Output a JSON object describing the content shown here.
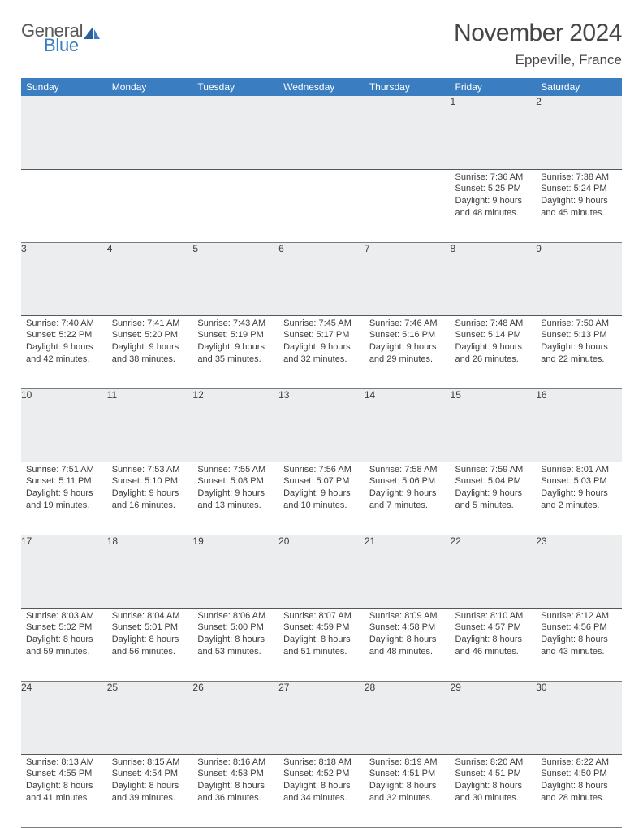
{
  "logo": {
    "general": "General",
    "blue": "Blue"
  },
  "header": {
    "title": "November 2024",
    "location": "Eppeville, France"
  },
  "colors": {
    "header_bg": "#3a7ec1",
    "header_text": "#ffffff",
    "daynum_bg": "#ecedee",
    "text": "#3b3c3e",
    "logo_gray": "#57585a",
    "logo_blue": "#3a7ec1"
  },
  "dayHeaders": [
    "Sunday",
    "Monday",
    "Tuesday",
    "Wednesday",
    "Thursday",
    "Friday",
    "Saturday"
  ],
  "weeks": [
    [
      null,
      null,
      null,
      null,
      null,
      {
        "n": "1",
        "sunrise": "7:36 AM",
        "sunset": "5:25 PM",
        "dh": "9",
        "dm": "48"
      },
      {
        "n": "2",
        "sunrise": "7:38 AM",
        "sunset": "5:24 PM",
        "dh": "9",
        "dm": "45"
      }
    ],
    [
      {
        "n": "3",
        "sunrise": "7:40 AM",
        "sunset": "5:22 PM",
        "dh": "9",
        "dm": "42"
      },
      {
        "n": "4",
        "sunrise": "7:41 AM",
        "sunset": "5:20 PM",
        "dh": "9",
        "dm": "38"
      },
      {
        "n": "5",
        "sunrise": "7:43 AM",
        "sunset": "5:19 PM",
        "dh": "9",
        "dm": "35"
      },
      {
        "n": "6",
        "sunrise": "7:45 AM",
        "sunset": "5:17 PM",
        "dh": "9",
        "dm": "32"
      },
      {
        "n": "7",
        "sunrise": "7:46 AM",
        "sunset": "5:16 PM",
        "dh": "9",
        "dm": "29"
      },
      {
        "n": "8",
        "sunrise": "7:48 AM",
        "sunset": "5:14 PM",
        "dh": "9",
        "dm": "26"
      },
      {
        "n": "9",
        "sunrise": "7:50 AM",
        "sunset": "5:13 PM",
        "dh": "9",
        "dm": "22"
      }
    ],
    [
      {
        "n": "10",
        "sunrise": "7:51 AM",
        "sunset": "5:11 PM",
        "dh": "9",
        "dm": "19"
      },
      {
        "n": "11",
        "sunrise": "7:53 AM",
        "sunset": "5:10 PM",
        "dh": "9",
        "dm": "16"
      },
      {
        "n": "12",
        "sunrise": "7:55 AM",
        "sunset": "5:08 PM",
        "dh": "9",
        "dm": "13"
      },
      {
        "n": "13",
        "sunrise": "7:56 AM",
        "sunset": "5:07 PM",
        "dh": "9",
        "dm": "10"
      },
      {
        "n": "14",
        "sunrise": "7:58 AM",
        "sunset": "5:06 PM",
        "dh": "9",
        "dm": "7"
      },
      {
        "n": "15",
        "sunrise": "7:59 AM",
        "sunset": "5:04 PM",
        "dh": "9",
        "dm": "5"
      },
      {
        "n": "16",
        "sunrise": "8:01 AM",
        "sunset": "5:03 PM",
        "dh": "9",
        "dm": "2"
      }
    ],
    [
      {
        "n": "17",
        "sunrise": "8:03 AM",
        "sunset": "5:02 PM",
        "dh": "8",
        "dm": "59"
      },
      {
        "n": "18",
        "sunrise": "8:04 AM",
        "sunset": "5:01 PM",
        "dh": "8",
        "dm": "56"
      },
      {
        "n": "19",
        "sunrise": "8:06 AM",
        "sunset": "5:00 PM",
        "dh": "8",
        "dm": "53"
      },
      {
        "n": "20",
        "sunrise": "8:07 AM",
        "sunset": "4:59 PM",
        "dh": "8",
        "dm": "51"
      },
      {
        "n": "21",
        "sunrise": "8:09 AM",
        "sunset": "4:58 PM",
        "dh": "8",
        "dm": "48"
      },
      {
        "n": "22",
        "sunrise": "8:10 AM",
        "sunset": "4:57 PM",
        "dh": "8",
        "dm": "46"
      },
      {
        "n": "23",
        "sunrise": "8:12 AM",
        "sunset": "4:56 PM",
        "dh": "8",
        "dm": "43"
      }
    ],
    [
      {
        "n": "24",
        "sunrise": "8:13 AM",
        "sunset": "4:55 PM",
        "dh": "8",
        "dm": "41"
      },
      {
        "n": "25",
        "sunrise": "8:15 AM",
        "sunset": "4:54 PM",
        "dh": "8",
        "dm": "39"
      },
      {
        "n": "26",
        "sunrise": "8:16 AM",
        "sunset": "4:53 PM",
        "dh": "8",
        "dm": "36"
      },
      {
        "n": "27",
        "sunrise": "8:18 AM",
        "sunset": "4:52 PM",
        "dh": "8",
        "dm": "34"
      },
      {
        "n": "28",
        "sunrise": "8:19 AM",
        "sunset": "4:51 PM",
        "dh": "8",
        "dm": "32"
      },
      {
        "n": "29",
        "sunrise": "8:20 AM",
        "sunset": "4:51 PM",
        "dh": "8",
        "dm": "30"
      },
      {
        "n": "30",
        "sunrise": "8:22 AM",
        "sunset": "4:50 PM",
        "dh": "8",
        "dm": "28"
      }
    ]
  ]
}
